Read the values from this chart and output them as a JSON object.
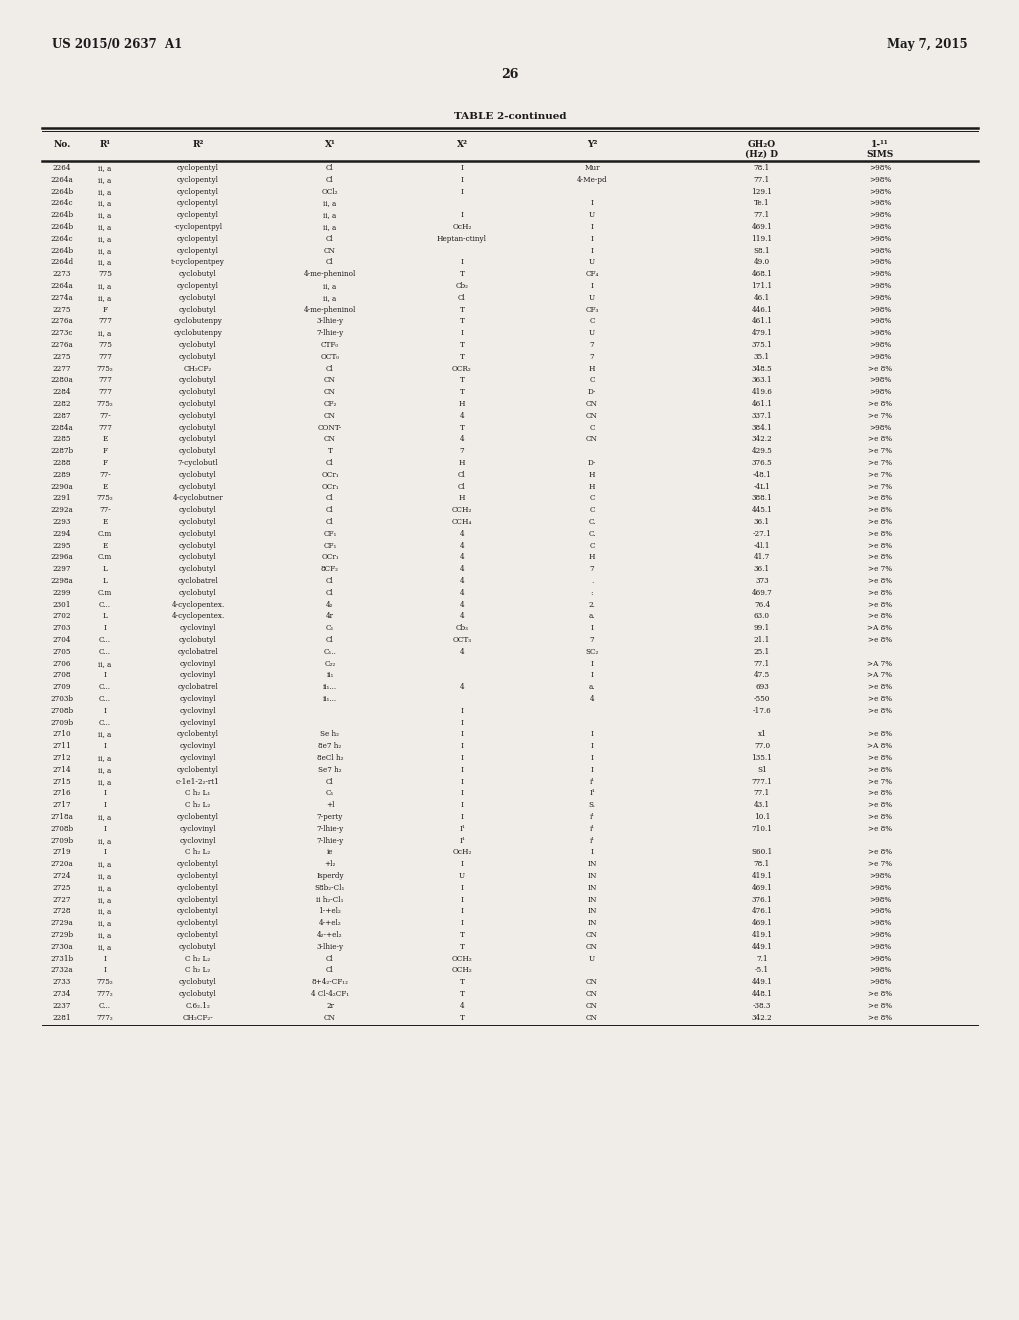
{
  "page_header_left": "US 2015/0 2637  A1",
  "page_header_right": "May 7, 2015",
  "page_number": "26",
  "table_title": "TABLE 2-continued",
  "background_color": "#f0ede8",
  "text_color": "#1a1a1a",
  "rows": [
    [
      "2264",
      "ii, a",
      "cyclopentyl",
      "Cl",
      "I",
      "Mur",
      "78.1",
      ">98%"
    ],
    [
      "2264a",
      "ii, a",
      "cyclopentyl",
      "Cl",
      "I",
      "4-Me-pd",
      "77.1",
      ">98%"
    ],
    [
      "2264b",
      "ii, a",
      "cyclopentyl",
      "OCl₂",
      "I",
      "",
      "129.1",
      ">98%"
    ],
    [
      "2264c",
      "ii, a",
      "cyclopentyl",
      "ii, a",
      "",
      "I",
      "Te.1",
      ">98%"
    ],
    [
      "2264b",
      "ii, a",
      "cyclopentyl",
      "ii, a",
      "I",
      "U",
      "77.1",
      ">98%"
    ],
    [
      "2264b",
      "ii, a",
      "-cyclopentpyl",
      "ii, a",
      "OcH₂",
      "I",
      "469.1",
      ">98%"
    ],
    [
      "2264c",
      "ii, a",
      "cyclopentyl",
      "Cl",
      "Heptan-ctinyl",
      "I",
      "119.1",
      ">98%"
    ],
    [
      "2264b",
      "ii, a",
      "cyclopentyl",
      "CN",
      "",
      "I",
      "S8.1",
      ">98%"
    ],
    [
      "2264d",
      "ii, a",
      "t-cyclopentpey",
      "Cl",
      "I",
      "U",
      "49.0",
      ">98%"
    ],
    [
      "2273",
      "775",
      "cyclobutyl",
      "4-me-pheninol",
      "T",
      "CF₄",
      "468.1",
      ">98%"
    ],
    [
      "2264a",
      "ii, a",
      "cyclopentyl",
      "ii, a",
      "Cb₂",
      "I",
      "171.1",
      ">98%"
    ],
    [
      "2274a",
      "ii, a",
      "cyclobutyl",
      "ii, a",
      "Cl",
      "U",
      "46.1",
      ">98%"
    ],
    [
      "2275",
      "F",
      "cyclobutyl",
      "4-me-pheninol",
      "T",
      "CF₃",
      "446.1",
      ">98%"
    ],
    [
      "2276a",
      "777",
      "cyclobutenpy",
      "3-lhie-y",
      "T",
      "C",
      "461.1",
      ">98%"
    ],
    [
      "2273c",
      "ii, a",
      "cyclobutenpy",
      "7-lhie-y",
      "I",
      "U",
      "479.1",
      ">98%"
    ],
    [
      "2276a",
      "775",
      "cyclobutyl",
      "CTF₀",
      "T",
      "7",
      "375.1",
      ">98%"
    ],
    [
      "2275",
      "777",
      "cyclobutyl",
      "OCT₀",
      "T",
      "7",
      "35.1",
      ">98%"
    ],
    [
      "2277",
      "775₂",
      "CH₂CF₂",
      "Cl",
      "OCR₂",
      "H",
      "348.5",
      ">e 8%"
    ],
    [
      "2280a",
      "777",
      "cyclobutyl",
      "CN",
      "T",
      "C",
      "363.1",
      ">98%"
    ],
    [
      "2284",
      "777",
      "cyclobutyl",
      "CN",
      "T",
      "D-",
      "419.6",
      ">98%"
    ],
    [
      "2282",
      "775₂",
      "cyclobutyl",
      "CF₂",
      "H",
      "CN",
      "461.1",
      ">e 8%"
    ],
    [
      "2287",
      "77-",
      "cyclobutyl",
      "CN",
      "4",
      "CN",
      "337.1",
      ">e 7%"
    ],
    [
      "2284a",
      "777",
      "cyclobutyl",
      "CONT-",
      "T",
      "C",
      "384.1",
      ">98%"
    ],
    [
      "2285",
      "E",
      "cyclobutyl",
      "CN",
      "4",
      "CN",
      "342.2",
      ">e 8%"
    ],
    [
      "2287b",
      "F",
      "cyclobutyl",
      "T",
      "7",
      "",
      "429.5",
      ">e 7%"
    ],
    [
      "2288",
      "F",
      "7-cyclobutl",
      "Cl",
      "H",
      "D-",
      "376.5",
      ">e 7%"
    ],
    [
      "2289",
      "77-",
      "cyclobutyl",
      "OCr₁",
      "Cl",
      "H",
      "-48.1",
      ">e 7%"
    ],
    [
      "2290a",
      "E",
      "cyclobutyl",
      "OCr₁",
      "Cl",
      "H",
      "-4L1",
      ">e 7%"
    ],
    [
      "2291",
      "775₂",
      "4-cyclobutner",
      "Cl",
      "H",
      "C",
      "388.1",
      ">e 8%"
    ],
    [
      "2292a",
      "77-",
      "cyclobutyl",
      "Cl",
      "CCH₂",
      "C",
      "445.1",
      ">e 8%"
    ],
    [
      "2293",
      "E",
      "cyclobutyl",
      "Cl",
      "CCH₄",
      "C.",
      "36.1",
      ">e 8%"
    ],
    [
      "2294",
      "C.m",
      "cyclobutyl",
      "CF₁",
      "4",
      "C.",
      "-27.1",
      ">e 8%"
    ],
    [
      "2295",
      "E",
      "cyclobutyl",
      "CF₁",
      "4",
      "C",
      "-4l.1",
      ">e 8%"
    ],
    [
      "2296a",
      "C.m",
      "cyclobutyl",
      "OCr₁",
      "4",
      "H",
      "41.7",
      ">e 8%"
    ],
    [
      "2297",
      "L",
      "cyclobutyl",
      "8CF₂",
      "4",
      "7",
      "36.1",
      ">e 7%"
    ],
    [
      "2298a",
      "L",
      "cyclobatrel",
      "Cl",
      "4",
      ".",
      "373",
      ">e 8%"
    ],
    [
      "2299",
      "C.m",
      "cyclobutyl",
      "Cl",
      "4",
      ":",
      "469.7",
      ">e 8%"
    ],
    [
      "2301",
      "C...",
      "4-cyclopentex.",
      "4₂",
      "4",
      "2.",
      "76.4",
      ">e 8%"
    ],
    [
      "2702",
      "L",
      "4-cyclopentex.",
      "4r",
      "4",
      "a.",
      "63.0",
      ">e 8%"
    ],
    [
      "2703",
      "I",
      "cyclovinyl",
      "C₁",
      "Cb₃",
      "I",
      "99.1",
      ">A 8%"
    ],
    [
      "2704",
      "C...",
      "cyclobutyl",
      "Cl",
      "OCT₃",
      "7",
      "21.1",
      ">e 8%"
    ],
    [
      "2705",
      "C...",
      "cyclobatrel",
      "C₁..",
      "4",
      "SC₂",
      "25.1",
      ""
    ],
    [
      "2706",
      "ii, a",
      "cyclovinyl",
      "C₂₂",
      "",
      "I",
      "77.1",
      ">A 7%"
    ],
    [
      "2708",
      "I",
      "cyclovinyl",
      "ii₁",
      "",
      "I",
      "47.5",
      ">A 7%"
    ],
    [
      "2709",
      "C...",
      "cyclobatrel",
      "ii₁...",
      "4",
      "a.",
      "693",
      ">e 8%"
    ],
    [
      "2703b",
      "C...",
      "cyclovinyl",
      "ii₁...",
      "",
      "4",
      "-550",
      ">e 8%"
    ],
    [
      "2708b",
      "I",
      "cyclovinyl",
      "",
      "I",
      "",
      "-17.6",
      ">e 8%"
    ],
    [
      "2709b",
      "C...",
      "cyclovinyl",
      "",
      "I",
      "",
      "",
      ""
    ],
    [
      "2710",
      "ii, a",
      "cyclobentyl",
      "Se h₂",
      "I",
      "I",
      "x1",
      ">e 8%"
    ],
    [
      "2711",
      "I",
      "cyclovinyl",
      "8e7 h₂",
      "I",
      "I",
      "77.0",
      ">A 8%"
    ],
    [
      "2712",
      "ii, a",
      "cyclovinyl",
      "8eCl h₂",
      "I",
      "I",
      "135.1",
      ">e 8%"
    ],
    [
      "2714",
      "ii, a",
      "cyclobentyl",
      "Se7 h₂",
      "I",
      "I",
      "S1",
      ">e 8%"
    ],
    [
      "2715",
      "ii, a",
      "c-1e1-2₂-rt1",
      "Cl",
      "I",
      "i¹",
      "777.1",
      ">e 7%"
    ],
    [
      "2716",
      "I",
      "C h₂ L₁",
      "C₁",
      "I",
      "I¹",
      "77.1",
      ">e 8%"
    ],
    [
      "2717",
      "I",
      "C h₂ L₂",
      "+l",
      "I",
      "S.",
      "43.1",
      ">e 8%"
    ],
    [
      "2718a",
      "ii, a",
      "cyclobentyl",
      "7-perty",
      "I",
      "i¹",
      "10.1",
      ">e 8%"
    ],
    [
      "2708b",
      "I",
      "cyclovinyl",
      "7-lhie-y",
      "I¹",
      "i¹",
      "710.1",
      ">e 8%"
    ],
    [
      "2709b",
      "ii, a",
      "cyclovinyl",
      "7-lhie-y",
      "I¹",
      "i¹",
      "",
      ""
    ],
    [
      "2719",
      "I",
      "C h₂ L₂",
      "ie",
      "OcH₂",
      "I",
      "S60.1",
      ">e 8%"
    ],
    [
      "2720a",
      "ii, a",
      "cyclobentyl",
      "+l₂",
      "I",
      "IN",
      "78.1",
      ">e 7%"
    ],
    [
      "2724",
      "ii, a",
      "cyclobentyl",
      "Isperdy",
      "U",
      "IN",
      "419.1",
      ">98%"
    ],
    [
      "2725",
      "ii, a",
      "cyclobentyl",
      "S8b₂-Cl₁",
      "I",
      "IN",
      "469.1",
      ">98%"
    ],
    [
      "2727",
      "ii, a",
      "cyclobentyl",
      "ii h₂-Cl₁",
      "I",
      "IN",
      "376.1",
      ">98%"
    ],
    [
      "2728",
      "ii, a",
      "cyclobentyl",
      "1-+el₂",
      "I",
      "IN",
      "476.1",
      ">98%"
    ],
    [
      "2729a",
      "ii, a",
      "cyclobentyl",
      "4-+el₂",
      "I",
      "IN",
      "469.1",
      ">98%"
    ],
    [
      "2729b",
      "ii, a",
      "cyclobentyl",
      "4₂-+el₂",
      "T",
      "CN",
      "419.1",
      ">98%"
    ],
    [
      "2730a",
      "ii, a",
      "cyclobutyl",
      "3-lhie-y",
      "T",
      "CN",
      "449.1",
      ">98%"
    ],
    [
      "2731b",
      "I",
      "C h₂ L₂",
      "Cl",
      "OCH₂",
      "U",
      "7.1",
      ">98%"
    ],
    [
      "2732a",
      "I",
      "C h₂ L₂",
      "Cl",
      "OCH₂",
      "",
      "-5.1",
      ">98%"
    ],
    [
      "2733",
      "775₂",
      "cyclobutyl",
      "8+4₂-CF₁₂",
      "T",
      "CN",
      "449.1",
      ">98%"
    ],
    [
      "2734",
      "777₂",
      "cyclobutyl",
      "4 Cl-4₂CF₁",
      "T",
      "CN",
      "448.1",
      ">e 8%"
    ],
    [
      "2237",
      "C...",
      "C.6₂.1₂",
      "2r",
      "4",
      "CN",
      "-38.3",
      ">e 8%"
    ],
    [
      "2281",
      "777₂",
      "CH₂CF₂-",
      "CN",
      "T",
      "CN",
      "342.2",
      ">e 8%"
    ]
  ]
}
